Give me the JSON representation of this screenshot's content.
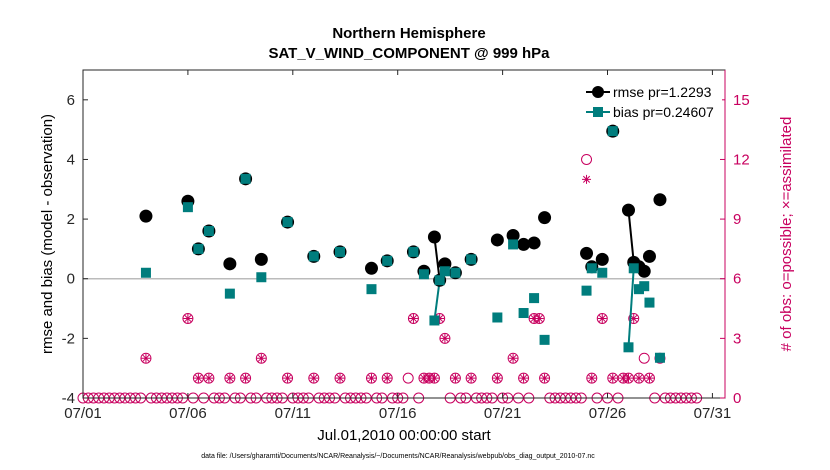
{
  "chart_data": {
    "type": "line",
    "title": "Northern Hemisphere",
    "subtitle": "SAT_V_WIND_COMPONENT @ 999 hPa",
    "xlabel": "Jul.01,2010 00:00:00 start",
    "ylabel": "rmse and bias (model - observation)",
    "y2label": "# of obs: o=possible; ×=assimilated",
    "footer": "data file: /Users/gharamti/Documents/NCAR/Reanalysis/~/Documents/NCAR/Reanalysis/webpub/obs_diag_output_2010-07.nc",
    "xlim": [
      1,
      31.6
    ],
    "ylim": [
      -4,
      7
    ],
    "y2lim": [
      0,
      16.5
    ],
    "xticks": [
      {
        "value": 1,
        "label": "07/01"
      },
      {
        "value": 6,
        "label": "07/06"
      },
      {
        "value": 11,
        "label": "07/11"
      },
      {
        "value": 16,
        "label": "07/16"
      },
      {
        "value": 21,
        "label": "07/21"
      },
      {
        "value": 26,
        "label": "07/26"
      },
      {
        "value": 31,
        "label": "07/31"
      }
    ],
    "yticks": [
      {
        "value": -4,
        "label": "-4"
      },
      {
        "value": -2,
        "label": "-2"
      },
      {
        "value": 0,
        "label": "0"
      },
      {
        "value": 2,
        "label": "2"
      },
      {
        "value": 4,
        "label": "4"
      },
      {
        "value": 6,
        "label": "6"
      }
    ],
    "y2ticks": [
      {
        "value": 0,
        "label": "0"
      },
      {
        "value": 3,
        "label": "3"
      },
      {
        "value": 6,
        "label": "6"
      },
      {
        "value": 9,
        "label": "9"
      },
      {
        "value": 12,
        "label": "12"
      },
      {
        "value": 15,
        "label": "15"
      }
    ],
    "colors": {
      "rmse": "#000000",
      "bias": "#007d7d",
      "obs": "#c8005f",
      "zero": "#bbbbbb"
    },
    "legend": {
      "position": "top-right",
      "entries": [
        {
          "key": "rmse",
          "label": "rmse pr=1.2293"
        },
        {
          "key": "bias",
          "label": "bias pr=0.24607"
        }
      ]
    },
    "series": [
      {
        "name": "rmse",
        "points": [
          [
            4.0,
            2.1
          ],
          [
            6.0,
            2.6
          ],
          [
            6.5,
            1.0
          ],
          [
            7.0,
            1.6
          ],
          [
            8.0,
            0.5
          ],
          [
            8.75,
            3.35
          ],
          [
            9.5,
            0.65
          ],
          [
            10.75,
            1.9
          ],
          [
            12.0,
            0.75
          ],
          [
            13.25,
            0.9
          ],
          [
            14.75,
            0.35
          ],
          [
            15.5,
            0.6
          ],
          [
            16.75,
            0.9
          ],
          [
            17.25,
            0.25
          ],
          [
            17.75,
            1.4
          ],
          [
            18.0,
            -0.05
          ],
          [
            18.25,
            0.5
          ],
          [
            18.75,
            0.2
          ],
          [
            19.5,
            0.65
          ],
          [
            20.75,
            1.3
          ],
          [
            21.5,
            1.45
          ],
          [
            22.0,
            1.15
          ],
          [
            22.5,
            1.2
          ],
          [
            23.0,
            2.05
          ],
          [
            25.0,
            0.85
          ],
          [
            25.25,
            0.4
          ],
          [
            25.75,
            0.65
          ],
          [
            26.25,
            4.95
          ],
          [
            27.0,
            2.3
          ],
          [
            27.25,
            0.55
          ],
          [
            27.5,
            0.4
          ],
          [
            27.75,
            0.25
          ],
          [
            28.0,
            0.75
          ],
          [
            28.5,
            2.65
          ]
        ],
        "segments": [
          [
            17.75,
            18.0
          ],
          [
            18.0,
            18.25
          ],
          [
            27.0,
            27.25
          ]
        ]
      },
      {
        "name": "bias",
        "points": [
          [
            4.0,
            0.2
          ],
          [
            6.0,
            2.4
          ],
          [
            6.5,
            1.0
          ],
          [
            7.0,
            1.6
          ],
          [
            8.0,
            -0.5
          ],
          [
            8.75,
            3.35
          ],
          [
            9.5,
            0.05
          ],
          [
            10.75,
            1.9
          ],
          [
            12.0,
            0.75
          ],
          [
            13.25,
            0.9
          ],
          [
            14.75,
            -0.35
          ],
          [
            15.5,
            0.6
          ],
          [
            16.75,
            0.9
          ],
          [
            17.25,
            0.15
          ],
          [
            17.75,
            -1.4
          ],
          [
            18.0,
            -0.05
          ],
          [
            18.25,
            0.25
          ],
          [
            18.75,
            0.2
          ],
          [
            19.5,
            0.65
          ],
          [
            20.75,
            -1.3
          ],
          [
            21.5,
            1.15
          ],
          [
            22.0,
            -1.15
          ],
          [
            22.5,
            -0.65
          ],
          [
            23.0,
            -2.05
          ],
          [
            25.0,
            -0.4
          ],
          [
            25.25,
            0.35
          ],
          [
            25.75,
            0.2
          ],
          [
            26.25,
            4.95
          ],
          [
            27.0,
            -2.3
          ],
          [
            27.25,
            0.35
          ],
          [
            27.5,
            -0.35
          ],
          [
            27.75,
            -0.25
          ],
          [
            28.0,
            -0.8
          ],
          [
            28.5,
            -2.65
          ]
        ],
        "segments": [
          [
            17.75,
            18.0
          ],
          [
            18.0,
            18.25
          ],
          [
            27.0,
            27.25
          ]
        ]
      }
    ],
    "obs_possible": [
      [
        1.0,
        0
      ],
      [
        1.25,
        0
      ],
      [
        1.5,
        0
      ],
      [
        1.75,
        0
      ],
      [
        2.0,
        0
      ],
      [
        2.25,
        0
      ],
      [
        2.5,
        0
      ],
      [
        2.75,
        0
      ],
      [
        3.0,
        0
      ],
      [
        3.25,
        0
      ],
      [
        3.5,
        0
      ],
      [
        3.75,
        0
      ],
      [
        4.0,
        2
      ],
      [
        4.25,
        0
      ],
      [
        4.5,
        0
      ],
      [
        4.75,
        0
      ],
      [
        5.0,
        0
      ],
      [
        5.25,
        0
      ],
      [
        5.5,
        0
      ],
      [
        5.75,
        0
      ],
      [
        6.0,
        4
      ],
      [
        6.25,
        0
      ],
      [
        6.5,
        1
      ],
      [
        6.75,
        0
      ],
      [
        7.0,
        1
      ],
      [
        7.25,
        0
      ],
      [
        7.5,
        0
      ],
      [
        7.75,
        0
      ],
      [
        8.0,
        1
      ],
      [
        8.25,
        0
      ],
      [
        8.5,
        0
      ],
      [
        8.75,
        1
      ],
      [
        9.0,
        0
      ],
      [
        9.25,
        0
      ],
      [
        9.5,
        2
      ],
      [
        9.75,
        0
      ],
      [
        10.0,
        0
      ],
      [
        10.25,
        0
      ],
      [
        10.5,
        0
      ],
      [
        10.75,
        1
      ],
      [
        11.0,
        0
      ],
      [
        11.25,
        0
      ],
      [
        11.5,
        0
      ],
      [
        11.75,
        0
      ],
      [
        12.0,
        1
      ],
      [
        12.25,
        0
      ],
      [
        12.5,
        0
      ],
      [
        12.75,
        0
      ],
      [
        13.0,
        0
      ],
      [
        13.25,
        1
      ],
      [
        13.5,
        0
      ],
      [
        13.75,
        0
      ],
      [
        14.0,
        0
      ],
      [
        14.25,
        0
      ],
      [
        14.5,
        0
      ],
      [
        14.75,
        1
      ],
      [
        15.0,
        0
      ],
      [
        15.25,
        0
      ],
      [
        15.5,
        1
      ],
      [
        15.75,
        0
      ],
      [
        16.0,
        0
      ],
      [
        16.25,
        0
      ],
      [
        16.5,
        1
      ],
      [
        16.75,
        4
      ],
      [
        17.0,
        0
      ],
      [
        17.25,
        1
      ],
      [
        17.5,
        1
      ],
      [
        17.75,
        1
      ],
      [
        18.0,
        4
      ],
      [
        18.25,
        3
      ],
      [
        18.5,
        0
      ],
      [
        18.75,
        1
      ],
      [
        19.0,
        0
      ],
      [
        19.25,
        0
      ],
      [
        19.5,
        1
      ],
      [
        19.75,
        0
      ],
      [
        20.0,
        0
      ],
      [
        20.25,
        0
      ],
      [
        20.5,
        0
      ],
      [
        20.75,
        1
      ],
      [
        21.0,
        0
      ],
      [
        21.25,
        0
      ],
      [
        21.5,
        2
      ],
      [
        21.75,
        0
      ],
      [
        22.0,
        1
      ],
      [
        22.25,
        0
      ],
      [
        22.5,
        4
      ],
      [
        22.75,
        4
      ],
      [
        23.0,
        1
      ],
      [
        23.25,
        0
      ],
      [
        23.5,
        0
      ],
      [
        23.75,
        0
      ],
      [
        24.0,
        0
      ],
      [
        24.25,
        0
      ],
      [
        24.5,
        0
      ],
      [
        24.75,
        0
      ],
      [
        25.0,
        12
      ],
      [
        25.25,
        1
      ],
      [
        25.5,
        0
      ],
      [
        25.75,
        4
      ],
      [
        26.0,
        0
      ],
      [
        26.25,
        1
      ],
      [
        26.5,
        0
      ],
      [
        26.75,
        1
      ],
      [
        27.0,
        1
      ],
      [
        27.25,
        4
      ],
      [
        27.5,
        1
      ],
      [
        27.75,
        2
      ],
      [
        28.0,
        1
      ],
      [
        28.25,
        0
      ],
      [
        28.5,
        2
      ],
      [
        28.75,
        0
      ],
      [
        29.0,
        0
      ],
      [
        29.25,
        0
      ],
      [
        29.5,
        0
      ],
      [
        29.75,
        0
      ],
      [
        30.0,
        0
      ],
      [
        30.25,
        0
      ]
    ],
    "obs_assimilated": [
      [
        4.0,
        2
      ],
      [
        6.0,
        4
      ],
      [
        6.5,
        1
      ],
      [
        7.0,
        1
      ],
      [
        8.0,
        1
      ],
      [
        8.75,
        1
      ],
      [
        9.5,
        2
      ],
      [
        10.75,
        1
      ],
      [
        12.0,
        1
      ],
      [
        13.25,
        1
      ],
      [
        14.75,
        1
      ],
      [
        15.5,
        1
      ],
      [
        16.75,
        4
      ],
      [
        17.25,
        1
      ],
      [
        17.5,
        1
      ],
      [
        17.75,
        1
      ],
      [
        18.0,
        4
      ],
      [
        18.25,
        3
      ],
      [
        18.75,
        1
      ],
      [
        19.5,
        1
      ],
      [
        20.75,
        1
      ],
      [
        21.5,
        2
      ],
      [
        22.0,
        1
      ],
      [
        22.5,
        4
      ],
      [
        22.75,
        4
      ],
      [
        23.0,
        1
      ],
      [
        25.0,
        11
      ],
      [
        25.25,
        1
      ],
      [
        25.75,
        4
      ],
      [
        26.25,
        1
      ],
      [
        26.75,
        1
      ],
      [
        27.0,
        1
      ],
      [
        27.25,
        4
      ],
      [
        27.5,
        1
      ],
      [
        28.0,
        1
      ],
      [
        28.5,
        2
      ]
    ]
  }
}
